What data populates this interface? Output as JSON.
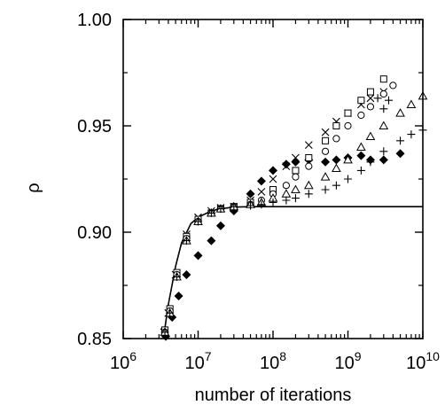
{
  "chart_data": {
    "type": "scatter",
    "title": "",
    "xlabel": "number of iterations",
    "ylabel": "ρ",
    "xscale": "log",
    "xlim": [
      1000000,
      10000000000
    ],
    "ylim": [
      0.85,
      1.0
    ],
    "x_ticks": [
      {
        "value": 1000000,
        "base": "10",
        "exp": "6"
      },
      {
        "value": 10000000,
        "base": "10",
        "exp": "7"
      },
      {
        "value": 100000000,
        "base": "10",
        "exp": "8"
      },
      {
        "value": 1000000000,
        "base": "10",
        "exp": "9"
      },
      {
        "value": 10000000000,
        "base": "10",
        "exp": "10"
      }
    ],
    "y_ticks": [
      {
        "value": 0.85,
        "label": "0.85"
      },
      {
        "value": 0.9,
        "label": "0.90"
      },
      {
        "value": 0.95,
        "label": "0.95"
      },
      {
        "value": 1.0,
        "label": "1.00"
      }
    ],
    "grid": false,
    "legend": "none",
    "series": [
      {
        "marker": "line",
        "color": "#000000",
        "x": [
          3500000,
          4000000,
          5000000,
          6000000,
          8000000,
          10000000,
          15000000,
          20000000,
          30000000,
          50000000,
          100000000,
          1000000000,
          10000000000
        ],
        "y": [
          0.852,
          0.866,
          0.884,
          0.895,
          0.904,
          0.907,
          0.91,
          0.911,
          0.9118,
          0.912,
          0.912,
          0.912,
          0.912
        ]
      },
      {
        "marker": "diamond-filled",
        "color": "#000000",
        "x": [
          3700000,
          4500000,
          5500000,
          7000000,
          10000000,
          15000000,
          20000000,
          30000000,
          50000000,
          70000000,
          100000000,
          150000000,
          200000000,
          300000000,
          500000000,
          700000000,
          1000000000,
          1500000000,
          2000000000,
          3000000000,
          5000000000
        ],
        "y": [
          0.851,
          0.86,
          0.87,
          0.88,
          0.889,
          0.896,
          0.903,
          0.91,
          0.918,
          0.924,
          0.929,
          0.932,
          0.933,
          0.934,
          0.933,
          0.934,
          0.935,
          0.936,
          0.934,
          0.934,
          0.937
        ]
      },
      {
        "marker": "x",
        "color": "#000000",
        "x": [
          3500000,
          4000000,
          5000000,
          7000000,
          10000000,
          15000000,
          20000000,
          30000000,
          50000000,
          70000000,
          100000000,
          150000000,
          200000000,
          300000000,
          500000000,
          700000000,
          1000000000,
          1500000000,
          2000000000,
          3000000000
        ],
        "y": [
          0.853,
          0.862,
          0.88,
          0.899,
          0.907,
          0.91,
          0.9115,
          0.912,
          0.915,
          0.919,
          0.925,
          0.931,
          0.935,
          0.941,
          0.947,
          0.952,
          0.956,
          0.96,
          0.963,
          0.966
        ]
      },
      {
        "marker": "square-open",
        "color": "#000000",
        "x": [
          3600000,
          4200000,
          5200000,
          7000000,
          10000000,
          15000000,
          20000000,
          30000000,
          50000000,
          100000000,
          200000000,
          300000000,
          500000000,
          700000000,
          1000000000,
          1500000000,
          2000000000,
          3000000000
        ],
        "y": [
          0.854,
          0.864,
          0.881,
          0.898,
          0.906,
          0.909,
          0.911,
          0.912,
          0.914,
          0.92,
          0.929,
          0.935,
          0.943,
          0.95,
          0.956,
          0.962,
          0.966,
          0.972
        ]
      },
      {
        "marker": "circle-open",
        "color": "#000000",
        "x": [
          3600000,
          4200000,
          5200000,
          7000000,
          10000000,
          15000000,
          20000000,
          30000000,
          50000000,
          70000000,
          100000000,
          150000000,
          200000000,
          300000000,
          500000000,
          700000000,
          1000000000,
          1500000000,
          2000000000,
          3000000000,
          4000000000
        ],
        "y": [
          0.853,
          0.863,
          0.88,
          0.897,
          0.905,
          0.909,
          0.911,
          0.912,
          0.913,
          0.915,
          0.918,
          0.922,
          0.926,
          0.931,
          0.938,
          0.944,
          0.95,
          0.955,
          0.959,
          0.965,
          0.969
        ]
      },
      {
        "marker": "plus",
        "color": "#000000",
        "x": [
          2500000000,
          3000000000,
          3500000000
        ],
        "y": [
          0.963,
          0.958,
          0.962
        ]
      },
      {
        "marker": "triangle-open",
        "color": "#000000",
        "x": [
          3600000,
          4200000,
          5200000,
          7000000,
          10000000,
          15000000,
          20000000,
          30000000,
          50000000,
          70000000,
          100000000,
          150000000,
          200000000,
          300000000,
          500000000,
          700000000,
          1000000000,
          1500000000,
          2000000000,
          3000000000,
          5000000000,
          7000000000,
          10000000000
        ],
        "y": [
          0.853,
          0.862,
          0.879,
          0.896,
          0.905,
          0.909,
          0.911,
          0.912,
          0.913,
          0.914,
          0.916,
          0.918,
          0.92,
          0.922,
          0.926,
          0.93,
          0.934,
          0.94,
          0.945,
          0.95,
          0.956,
          0.96,
          0.964
        ]
      },
      {
        "marker": "plus",
        "color": "#000000",
        "x": [
          3600000,
          4200000,
          5200000,
          7000000,
          10000000,
          15000000,
          20000000,
          30000000,
          50000000,
          70000000,
          100000000,
          150000000,
          200000000,
          300000000,
          500000000,
          700000000,
          1000000000,
          1500000000,
          2000000000,
          3000000000,
          5000000000,
          7000000000,
          10000000000
        ],
        "y": [
          0.853,
          0.862,
          0.879,
          0.896,
          0.905,
          0.909,
          0.911,
          0.912,
          0.9125,
          0.913,
          0.914,
          0.915,
          0.916,
          0.918,
          0.92,
          0.922,
          0.925,
          0.929,
          0.933,
          0.938,
          0.943,
          0.946,
          0.948
        ]
      }
    ]
  }
}
